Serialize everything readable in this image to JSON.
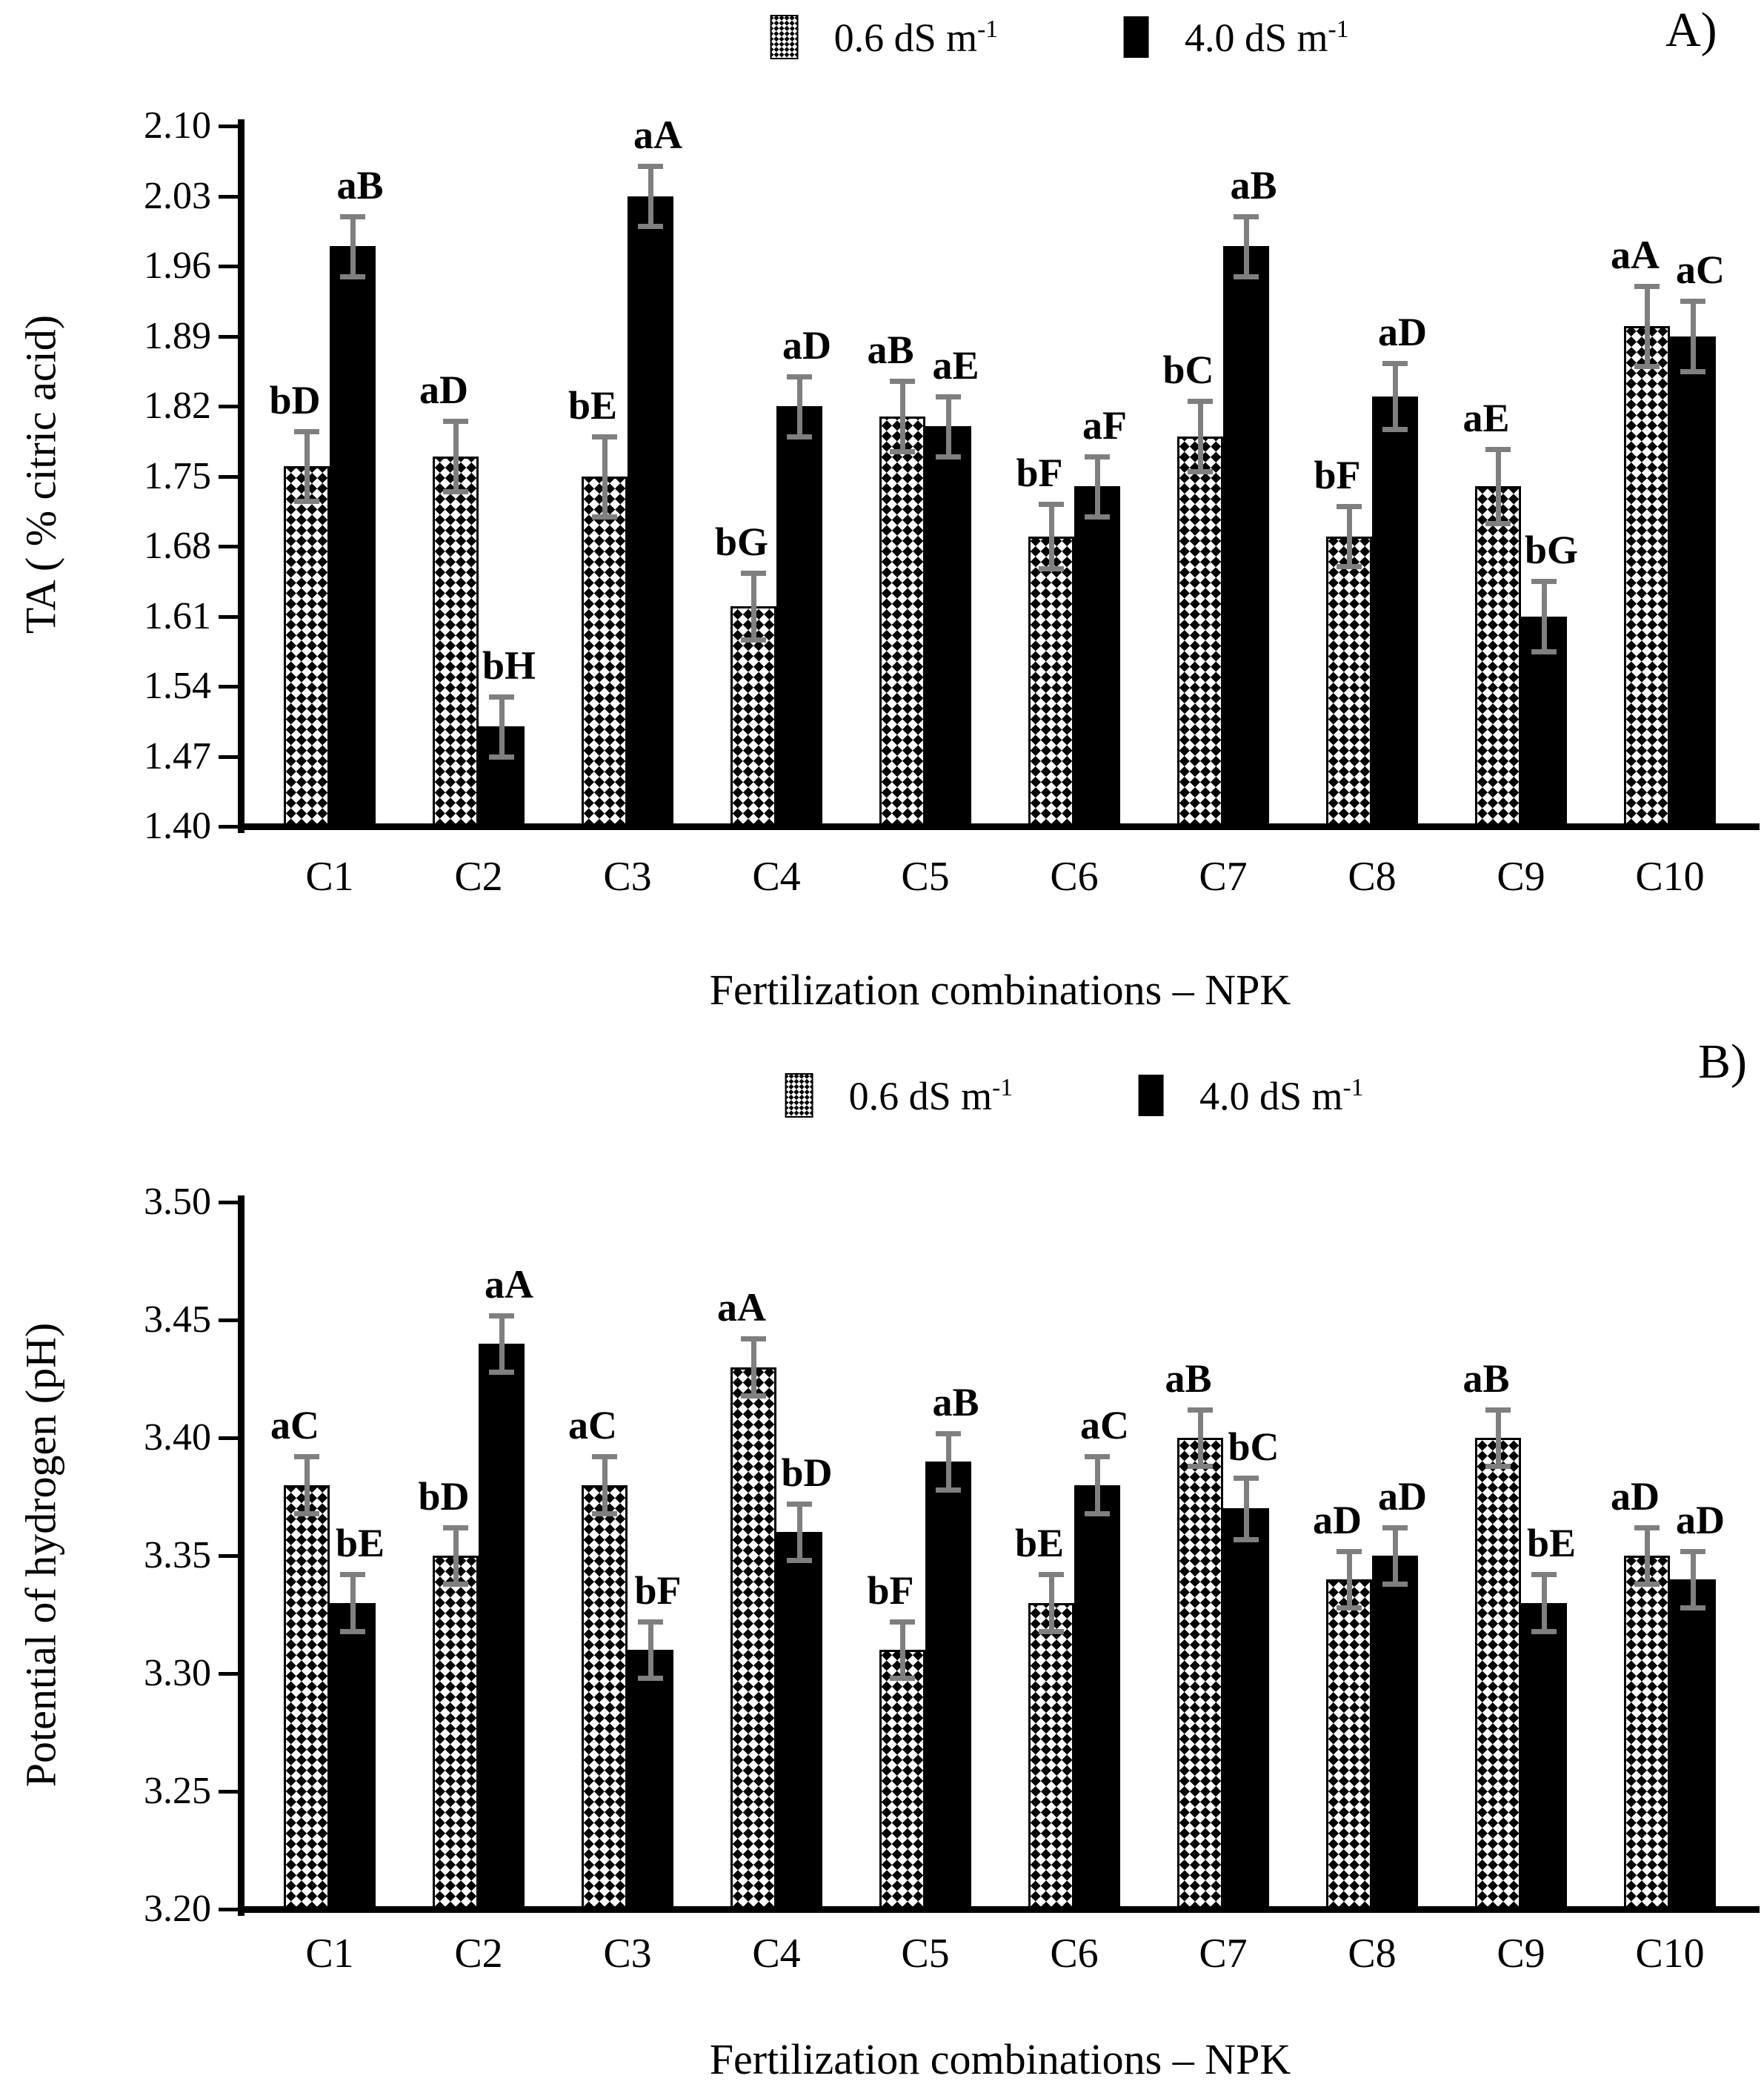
{
  "colors": {
    "solid_bar": "#000000",
    "checker_bar_fg": "#000000",
    "error_bar": "#7f7f7f",
    "text": "#000000",
    "background": "#ffffff"
  },
  "panels": [
    {
      "panel_label": "A)",
      "ylabel": "TA ( % citric acid)",
      "xlabel": "Fertilization combinations – NPK",
      "legend": {
        "items": [
          {
            "label": "0.6 dS m",
            "superscript": "-1",
            "swatch": "checker"
          },
          {
            "label": "4.0 dS m",
            "superscript": "-1",
            "swatch": "solid"
          }
        ]
      },
      "chart_data": {
        "type": "bar",
        "title": "",
        "categories": [
          "C1",
          "C2",
          "C3",
          "C4",
          "C5",
          "C6",
          "C7",
          "C8",
          "C9",
          "C10"
        ],
        "ylim": [
          1.4,
          2.1
        ],
        "yticks": [
          "2.10",
          "2.03",
          "1.96",
          "1.89",
          "1.82",
          "1.75",
          "1.68",
          "1.61",
          "1.54",
          "1.47",
          "1.40"
        ],
        "grid": false,
        "legend_position": "top-center",
        "error_bars": true,
        "series": [
          {
            "name": "0.6 dS m-1",
            "pattern": "checker",
            "values": [
              1.76,
              1.77,
              1.75,
              1.62,
              1.81,
              1.69,
              1.79,
              1.69,
              1.74,
              1.9
            ],
            "errors": [
              0.035,
              0.035,
              0.04,
              0.033,
              0.035,
              0.032,
              0.035,
              0.03,
              0.037,
              0.04
            ],
            "point_labels": [
              "bD",
              "aD",
              "bE",
              "bG",
              "aB",
              "bF",
              "bC",
              "bF",
              "aE",
              "aA"
            ]
          },
          {
            "name": "4.0 dS m-1",
            "pattern": "solid",
            "values": [
              1.98,
              1.5,
              2.03,
              1.82,
              1.8,
              1.74,
              1.98,
              1.83,
              1.61,
              1.89
            ],
            "errors": [
              0.03,
              0.03,
              0.03,
              0.03,
              0.03,
              0.03,
              0.03,
              0.033,
              0.035,
              0.035
            ],
            "point_labels": [
              "aB",
              "bH",
              "aA",
              "aD",
              "aE",
              "aF",
              "aB",
              "aD",
              "bG",
              "aC"
            ]
          }
        ]
      }
    },
    {
      "panel_label": "B)",
      "ylabel": "Potential of hydrogen (pH)",
      "xlabel": "Fertilization combinations – NPK",
      "legend": {
        "items": [
          {
            "label": "0.6 dS m",
            "superscript": "-1",
            "swatch": "checker"
          },
          {
            "label": "4.0 dS m",
            "superscript": "-1",
            "swatch": "solid"
          }
        ]
      },
      "chart_data": {
        "type": "bar",
        "title": "",
        "categories": [
          "C1",
          "C2",
          "C3",
          "C4",
          "C5",
          "C6",
          "C7",
          "C8",
          "C9",
          "C10"
        ],
        "ylim": [
          3.2,
          3.5
        ],
        "yticks": [
          "3.50",
          "3.45",
          "3.40",
          "3.35",
          "3.30",
          "3.25",
          "3.20"
        ],
        "grid": false,
        "legend_position": "top-center",
        "error_bars": true,
        "series": [
          {
            "name": "0.6 dS m-1",
            "pattern": "checker",
            "values": [
              3.38,
              3.35,
              3.38,
              3.43,
              3.31,
              3.33,
              3.4,
              3.34,
              3.4,
              3.35
            ],
            "errors": [
              0.012,
              0.012,
              0.012,
              0.012,
              0.012,
              0.012,
              0.012,
              0.012,
              0.012,
              0.012
            ],
            "point_labels": [
              "aC",
              "bD",
              "aC",
              "aA",
              "bF",
              "bE",
              "aB",
              "aD",
              "aB",
              "aD"
            ]
          },
          {
            "name": "4.0 dS m-1",
            "pattern": "solid",
            "values": [
              3.33,
              3.44,
              3.31,
              3.36,
              3.39,
              3.38,
              3.37,
              3.35,
              3.33,
              3.34
            ],
            "errors": [
              0.012,
              0.012,
              0.012,
              0.012,
              0.012,
              0.012,
              0.013,
              0.012,
              0.012,
              0.012
            ],
            "point_labels": [
              "bE",
              "aA",
              "bF",
              "bD",
              "aB",
              "aC",
              "bC",
              "aD",
              "bE",
              "aD"
            ]
          }
        ]
      }
    }
  ]
}
